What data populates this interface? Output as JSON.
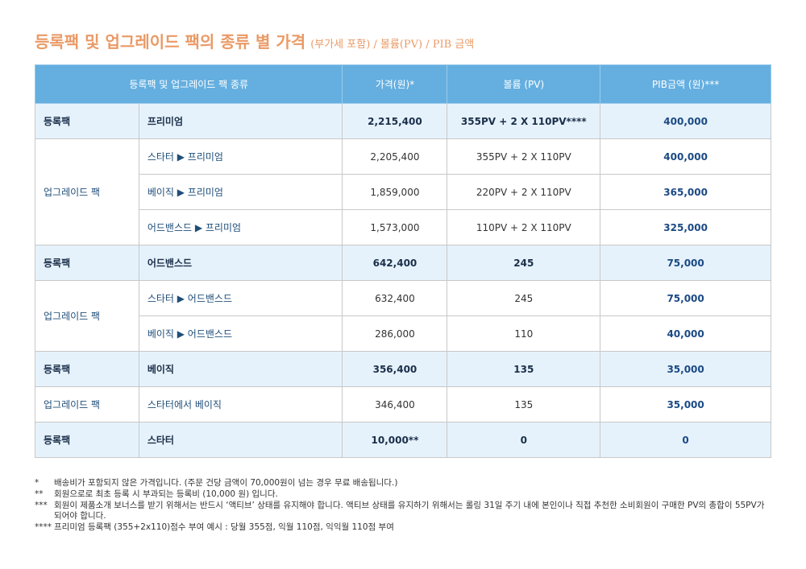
{
  "header": {
    "title": "등록팩 및 업그레이드 팩의 종류 별 가격",
    "subtitle": "(부가세 포함) / 볼륨(PV) / PIB 금액"
  },
  "table": {
    "columns": [
      "등록팩 및 업그레이드 팩 종류",
      "가격(원)*",
      "볼륨 (PV)",
      "PIB금액 (원)***"
    ],
    "sections": [
      {
        "label": "등록팩",
        "rows": [
          [
            "프리미엄",
            "2,215,400",
            "355PV + 2 X 110PV****",
            "400,000"
          ]
        ]
      },
      {
        "label": "업그레이드 팩",
        "rows": [
          [
            "스타터 ▶ 프리미엄",
            "2,205,400",
            "355PV + 2 X 110PV",
            "400,000"
          ],
          [
            "베이직 ▶ 프리미엄",
            "1,859,000",
            "220PV + 2 X 110PV",
            "365,000"
          ],
          [
            "어드밴스드 ▶ 프리미엄",
            "1,573,000",
            "110PV + 2 X 110PV",
            "325,000"
          ]
        ]
      },
      {
        "label": "등록팩",
        "rows": [
          [
            "어드밴스드",
            "642,400",
            "245",
            "75,000"
          ]
        ]
      },
      {
        "label": "업그레이드 팩",
        "rows": [
          [
            "스타터 ▶ 어드밴스드",
            "632,400",
            "245",
            "75,000"
          ],
          [
            "베이직 ▶ 어드밴스드",
            "286,000",
            "110",
            "40,000"
          ]
        ]
      },
      {
        "label": "등록팩",
        "rows": [
          [
            "베이직",
            "356,400",
            "135",
            "35,000"
          ]
        ]
      },
      {
        "label": "업그레이드 팩",
        "rows": [
          [
            "스타터에서 베이직",
            "346,400",
            "135",
            "35,000"
          ]
        ]
      },
      {
        "label": "등록팩",
        "rows": [
          [
            "스타터",
            "10,000**",
            "0",
            "0"
          ]
        ]
      }
    ]
  },
  "footnotes": [
    {
      "marker": "*",
      "text": "배송비가 포함되지 않은 가격입니다. (주문 건당 금액이 70,000원이 넘는 경우 무료 배송됩니다.)"
    },
    {
      "marker": "**",
      "text": "회원으로로 최초 등록 시 부과되는 등록비 (10,000 원) 입니다."
    },
    {
      "marker": "***",
      "text": "회원이 제품소개 보너스를 받기 위해서는 반드시 ‘액티브’ 상태를 유지해야 합니다. 액티브 상태를 유지하기 위해서는 롤링 31일 주기 내에 본인이나 직접 추천한 소비회원이 구매한 PV의 총합이 55PV가 되어야 합니다."
    },
    {
      "marker": "****",
      "text": "프리미엄 등록팩 (355+2x110)점수 부여 예시 : 당월 355점, 익월 110점, 익익월 110점 부여"
    }
  ]
}
